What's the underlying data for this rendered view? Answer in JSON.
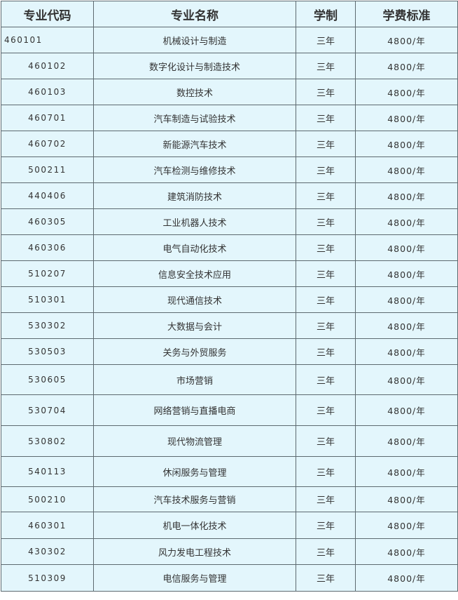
{
  "table": {
    "headers": [
      "专业代码",
      "专业名称",
      "学制",
      "学费标准"
    ],
    "rows": [
      {
        "code": "460101",
        "name": "机械设计与制造",
        "duration": "三年",
        "fee": "4800/年"
      },
      {
        "code": "460102",
        "name": "数字化设计与制造技术",
        "duration": "三年",
        "fee": "4800/年"
      },
      {
        "code": "460103",
        "name": "数控技术",
        "duration": "三年",
        "fee": "4800/年"
      },
      {
        "code": "460701",
        "name": "汽车制造与试验技术",
        "duration": "三年",
        "fee": "4800/年"
      },
      {
        "code": "460702",
        "name": "新能源汽车技术",
        "duration": "三年",
        "fee": "4800/年"
      },
      {
        "code": "500211",
        "name": "汽车检测与维修技术",
        "duration": "三年",
        "fee": "4800/年"
      },
      {
        "code": "440406",
        "name": "建筑消防技术",
        "duration": "三年",
        "fee": "4800/年"
      },
      {
        "code": "460305",
        "name": "工业机器人技术",
        "duration": "三年",
        "fee": "4800/年"
      },
      {
        "code": "460306",
        "name": "电气自动化技术",
        "duration": "三年",
        "fee": "4800/年"
      },
      {
        "code": "510207",
        "name": "信息安全技术应用",
        "duration": "三年",
        "fee": "4800/年"
      },
      {
        "code": "510301",
        "name": "现代通信技术",
        "duration": "三年",
        "fee": "4800/年"
      },
      {
        "code": "530302",
        "name": "大数据与会计",
        "duration": "三年",
        "fee": "4800/年"
      },
      {
        "code": "530503",
        "name": "关务与外贸服务",
        "duration": "三年",
        "fee": "4800/年"
      },
      {
        "code": "530605",
        "name": "市场营销",
        "duration": "三年",
        "fee": "4800/年"
      },
      {
        "code": "530704",
        "name": "网络营销与直播电商",
        "duration": "三年",
        "fee": "4800/年"
      },
      {
        "code": "530802",
        "name": "现代物流管理",
        "duration": "三年",
        "fee": "4800/年"
      },
      {
        "code": "540113",
        "name": "休闲服务与管理",
        "duration": "三年",
        "fee": "4800/年"
      },
      {
        "code": "500210",
        "name": "汽车技术服务与营销",
        "duration": "三年",
        "fee": "4800/年"
      },
      {
        "code": "460301",
        "name": "机电一体化技术",
        "duration": "三年",
        "fee": "4800/年"
      },
      {
        "code": "430302",
        "name": "风力发电工程技术",
        "duration": "三年",
        "fee": "4800/年"
      },
      {
        "code": "510309",
        "name": "电信服务与管理",
        "duration": "三年",
        "fee": "4800/年"
      }
    ]
  }
}
